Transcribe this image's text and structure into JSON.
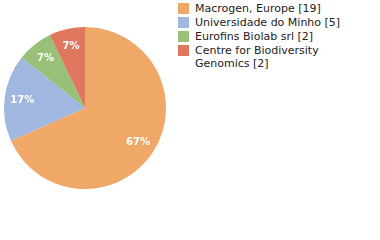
{
  "chart_data": {
    "type": "pie",
    "categories": [
      "Macrogen, Europe [19]",
      "Universidade do Minho [5]",
      "Eurofins Biolab srl [2]",
      "Centre for Biodiversity Genomics [2]"
    ],
    "values": [
      67,
      17,
      7,
      7
    ],
    "value_labels": [
      "67%",
      "17%",
      "7%",
      "7%"
    ],
    "colors": [
      "#f0a868",
      "#a0b8e0",
      "#98c078",
      "#e07860"
    ],
    "data_labels": true,
    "legend": "right"
  }
}
